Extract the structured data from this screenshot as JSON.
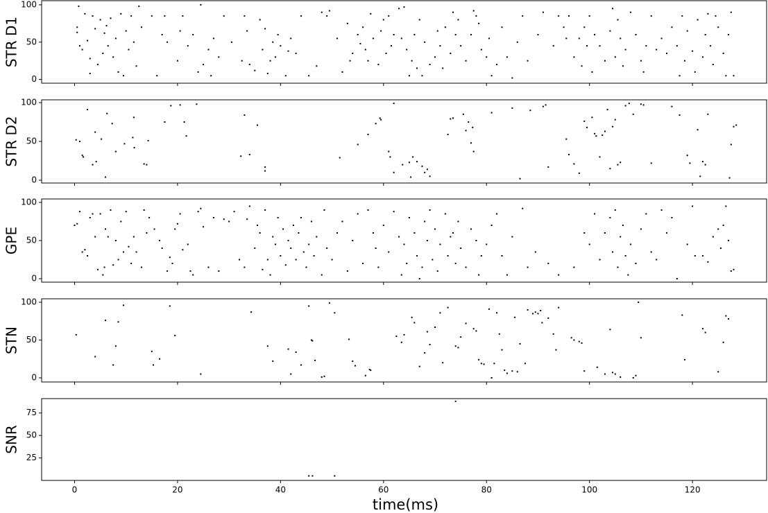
{
  "chart_data": [
    {
      "type": "scatter",
      "ylabel": "STR D1",
      "color": "#000000",
      "xlim": [
        -6.4,
        134.4
      ],
      "xticks": [
        0,
        20,
        40,
        60,
        80,
        100,
        120
      ],
      "ylim": [
        -5,
        105.5
      ],
      "yticks": [
        0,
        50,
        100
      ],
      "x": [
        0.5,
        0.5,
        0.8,
        1,
        1.5,
        2,
        2.5,
        3,
        3,
        3.5,
        4,
        4.5,
        5,
        5.5,
        5.8,
        6.2,
        6.5,
        7,
        7.5,
        8,
        8.5,
        9,
        9.5,
        10,
        10.5,
        11,
        11.5,
        12,
        12.5,
        13,
        15,
        16,
        17,
        17.5,
        18,
        20,
        20.5,
        21,
        22,
        23,
        24,
        24.5,
        25,
        26,
        26.5,
        27,
        28,
        29,
        30.5,
        32.5,
        33,
        33.5,
        34,
        35,
        36,
        36.5,
        37,
        37.5,
        38,
        38.5,
        39,
        39.5,
        40,
        41,
        41.5,
        42,
        43,
        44,
        45.5,
        47,
        48,
        49,
        49.5,
        51,
        52,
        53,
        53.5,
        54,
        55,
        55.5,
        56,
        56.5,
        57,
        57.5,
        58,
        59,
        59.5,
        60,
        60.5,
        61,
        61.5,
        62,
        63,
        63.5,
        64,
        64.5,
        65,
        65.5,
        66,
        66.5,
        67,
        67.5,
        68,
        69,
        70,
        70.5,
        71,
        71.5,
        72,
        73,
        73.5,
        74,
        74.5,
        75,
        76,
        77,
        77.5,
        78,
        78.5,
        79,
        80,
        80.5,
        81,
        82,
        83,
        84,
        85,
        86,
        87,
        88,
        90,
        91,
        93,
        94,
        95,
        95.5,
        96,
        97,
        98,
        98.5,
        99,
        99.5,
        100,
        100.5,
        101,
        102,
        103,
        104,
        104.5,
        105,
        105.5,
        106,
        106.5,
        107,
        108,
        109,
        110,
        110.5,
        111,
        112,
        113,
        114,
        115,
        116,
        117,
        117.5,
        118,
        118.5,
        119,
        120,
        120.5,
        121,
        122,
        122.5,
        123,
        123.5,
        124,
        124.5,
        125,
        126,
        126.5,
        127,
        127.5,
        128
      ],
      "values": [
        70,
        63,
        98,
        45,
        40,
        88,
        52,
        8,
        28,
        85,
        68,
        20,
        80,
        35,
        62,
        72,
        45,
        82,
        30,
        55,
        10,
        88,
        5,
        65,
        40,
        85,
        50,
        18,
        98,
        70,
        85,
        5,
        60,
        85,
        50,
        25,
        65,
        85,
        45,
        60,
        10,
        100,
        20,
        40,
        5,
        55,
        30,
        85,
        50,
        25,
        85,
        65,
        20,
        12,
        80,
        40,
        68,
        8,
        25,
        50,
        30,
        60,
        45,
        5,
        38,
        55,
        35,
        85,
        5,
        18,
        90,
        85,
        92,
        55,
        10,
        75,
        25,
        35,
        60,
        48,
        70,
        40,
        25,
        88,
        55,
        20,
        65,
        80,
        35,
        85,
        45,
        60,
        95,
        55,
        97,
        40,
        5,
        25,
        60,
        15,
        80,
        5,
        50,
        20,
        30,
        65,
        45,
        15,
        70,
        35,
        90,
        60,
        80,
        45,
        25,
        60,
        92,
        85,
        75,
        40,
        30,
        55,
        5,
        20,
        70,
        30,
        2,
        50,
        85,
        25,
        60,
        90,
        45,
        85,
        70,
        55,
        85,
        30,
        55,
        18,
        70,
        45,
        85,
        10,
        60,
        45,
        25,
        65,
        95,
        30,
        80,
        55,
        18,
        40,
        90,
        60,
        25,
        10,
        45,
        85,
        40,
        55,
        35,
        70,
        45,
        5,
        85,
        25,
        65,
        38,
        10,
        80,
        30,
        60,
        88,
        45,
        20,
        85,
        70,
        35,
        5,
        60,
        90,
        5
      ]
    },
    {
      "type": "scatter",
      "ylabel": "STR D2",
      "color": "#000000",
      "xlim": [
        -6.4,
        134.4
      ],
      "xticks": [
        0,
        20,
        40,
        60,
        80,
        100,
        120
      ],
      "ylim": [
        -3.6,
        103.6
      ],
      "yticks": [
        0,
        50,
        100
      ],
      "x": [
        0.3,
        1,
        1.5,
        1.7,
        2.5,
        3.5,
        4,
        4.2,
        5.2,
        6,
        6.3,
        7.3,
        8,
        9.7,
        11.3,
        11.5,
        11.6,
        13.5,
        14,
        14.3,
        17.5,
        18.7,
        20.5,
        21.3,
        21.7,
        23.7,
        32.3,
        33,
        34,
        35.5,
        37,
        37,
        51.5,
        55,
        57,
        58.5,
        59.3,
        59.5,
        61,
        61.3,
        62,
        62,
        63.7,
        65,
        65.3,
        65.7,
        66.5,
        67.5,
        68,
        68.5,
        69,
        72.5,
        73,
        73.5,
        75.5,
        76,
        76.5,
        77,
        77.5,
        77.3,
        81,
        85,
        86.5,
        88.5,
        91,
        91.5,
        92,
        95.5,
        96,
        97,
        98,
        99,
        99.5,
        100.5,
        101,
        101.3,
        102,
        102.5,
        103,
        103.5,
        104,
        104.5,
        105,
        105.5,
        106,
        107,
        107.7,
        108.5,
        110.5,
        110,
        112,
        116,
        117.5,
        119,
        119.5,
        121,
        121.5,
        122,
        122.5,
        123,
        127.2,
        127.5,
        128,
        128.5
      ],
      "values": [
        52,
        50,
        32,
        30,
        91,
        20,
        62,
        24,
        53,
        4,
        86,
        73,
        37,
        47,
        55,
        81,
        42,
        21,
        20,
        51,
        75,
        96,
        97,
        75,
        57,
        98,
        31,
        84,
        33,
        71,
        17,
        12,
        29,
        46,
        59,
        73,
        80,
        78,
        37,
        30,
        10,
        99,
        20,
        23,
        4,
        30,
        24,
        18,
        10,
        14,
        5,
        59,
        79,
        80,
        85,
        64,
        75,
        48,
        37,
        68,
        87,
        93,
        2,
        90,
        95,
        97,
        17,
        53,
        33,
        21,
        9,
        76,
        68,
        81,
        60,
        57,
        30,
        58,
        63,
        91,
        15,
        69,
        78,
        20,
        23,
        96,
        99,
        85,
        97,
        98,
        22,
        95,
        84,
        32,
        22,
        65,
        5,
        24,
        20,
        85,
        3,
        46,
        69,
        71
      ]
    },
    {
      "type": "scatter",
      "ylabel": "GPE",
      "color": "#000000",
      "xlim": [
        -6.4,
        134.4
      ],
      "xticks": [
        0,
        20,
        40,
        60,
        80,
        100,
        120
      ],
      "ylim": [
        -4.5,
        104.5
      ],
      "yticks": [
        0,
        50,
        100
      ],
      "x": [
        0,
        0.5,
        1,
        1.5,
        2,
        2.5,
        3,
        3.5,
        4,
        4.5,
        5,
        5.5,
        5.8,
        6,
        6.5,
        7,
        7.5,
        8,
        8.5,
        9,
        9.5,
        10,
        10.5,
        11,
        11.5,
        12,
        13,
        13.5,
        14,
        14.5,
        15.5,
        16.5,
        17,
        18,
        18.5,
        19,
        19.5,
        20,
        20.5,
        21,
        22,
        22.5,
        23,
        24,
        24.5,
        25,
        26,
        27,
        28,
        29,
        30,
        31,
        32,
        33,
        33.5,
        34,
        35,
        35.5,
        36,
        36.5,
        37,
        37.5,
        38,
        38.5,
        39,
        39.5,
        40,
        40.5,
        41,
        41.5,
        42,
        42.5,
        43,
        43.5,
        44,
        44.5,
        45,
        45.5,
        46,
        46.5,
        47,
        48,
        48.5,
        49,
        50,
        51,
        52,
        53,
        54,
        55,
        56,
        57,
        58,
        58.5,
        59,
        60,
        61,
        62,
        63,
        63.5,
        64,
        64.5,
        65,
        66,
        66.5,
        67,
        67.5,
        68,
        68.5,
        69,
        69.5,
        70,
        70.5,
        71,
        72,
        72.5,
        73,
        73.5,
        74,
        74.5,
        75,
        76,
        77,
        78,
        78.5,
        79,
        80,
        81,
        82,
        83,
        84,
        85,
        87,
        88,
        89.5,
        92,
        94,
        97,
        99,
        100,
        101,
        102,
        103,
        104,
        104.5,
        105,
        105.5,
        106,
        106.5,
        107,
        107.5,
        108,
        109,
        110,
        111,
        112,
        113,
        114,
        115,
        116,
        117,
        119,
        120,
        120.5,
        122,
        123,
        124,
        125,
        125.5,
        126,
        126.5,
        127,
        127.5,
        128
      ],
      "values": [
        70,
        72,
        88,
        35,
        38,
        30,
        80,
        85,
        55,
        12,
        85,
        5,
        15,
        65,
        55,
        90,
        18,
        50,
        25,
        75,
        35,
        88,
        42,
        20,
        55,
        35,
        15,
        90,
        60,
        80,
        65,
        50,
        40,
        10,
        28,
        20,
        65,
        72,
        85,
        38,
        45,
        10,
        5,
        88,
        92,
        68,
        15,
        80,
        10,
        78,
        75,
        88,
        25,
        15,
        78,
        95,
        40,
        70,
        60,
        12,
        90,
        25,
        5,
        55,
        45,
        80,
        30,
        65,
        18,
        50,
        40,
        70,
        25,
        60,
        80,
        35,
        15,
        45,
        75,
        30,
        55,
        5,
        90,
        40,
        25,
        60,
        75,
        10,
        50,
        85,
        20,
        90,
        60,
        40,
        15,
        70,
        35,
        88,
        55,
        5,
        45,
        20,
        80,
        60,
        30,
        0,
        15,
        75,
        50,
        90,
        25,
        65,
        10,
        45,
        85,
        30,
        55,
        60,
        20,
        75,
        40,
        15,
        65,
        50,
        5,
        30,
        45,
        70,
        85,
        30,
        5,
        55,
        92,
        15,
        35,
        20,
        5,
        15,
        60,
        45,
        85,
        25,
        60,
        80,
        35,
        90,
        15,
        55,
        70,
        30,
        5,
        45,
        20,
        65,
        85,
        35,
        25,
        90,
        60,
        80,
        0,
        45,
        95,
        30,
        30,
        22,
        55,
        65,
        40,
        70,
        95,
        50,
        10,
        12
      ]
    },
    {
      "type": "scatter",
      "ylabel": "STN",
      "color": "#000000",
      "xlim": [
        -6.4,
        134.4
      ],
      "xticks": [
        0,
        20,
        40,
        60,
        80,
        100,
        120
      ],
      "ylim": [
        -5.5,
        104.6
      ],
      "yticks": [
        0,
        50,
        100
      ],
      "x": [
        0.3,
        4,
        6,
        7.5,
        8,
        8.5,
        9.5,
        15,
        15.3,
        16.5,
        18.5,
        19.5,
        24.5,
        34.3,
        37.5,
        38.5,
        41.5,
        42,
        43,
        44,
        45.5,
        46,
        46.2,
        46.7,
        48,
        48.5,
        49.5,
        50.5,
        53.3,
        54,
        54.5,
        56.5,
        57.3,
        57.5,
        62.5,
        63.5,
        64,
        65.5,
        66,
        67,
        68,
        68.5,
        69,
        70,
        71,
        71.5,
        72.5,
        74,
        74.5,
        75,
        76,
        77.5,
        78,
        78.5,
        79,
        79.5,
        80.5,
        81,
        81.5,
        82,
        82.5,
        83,
        83.5,
        84,
        85,
        85.5,
        86,
        86.5,
        87.5,
        88,
        89,
        89.5,
        90,
        90.5,
        90.8,
        92,
        93,
        93.5,
        94,
        96.5,
        97,
        98,
        98.5,
        99,
        101.5,
        103,
        104,
        104.5,
        105,
        106,
        108.5,
        109,
        109.5,
        110,
        118,
        118.5,
        122,
        122.5,
        125,
        126,
        126.5,
        127
      ],
      "values": [
        57,
        28,
        76,
        17,
        42,
        74,
        96,
        35,
        17,
        25,
        95,
        56,
        5,
        87,
        42,
        22,
        38,
        5,
        34,
        17,
        95,
        50,
        49,
        23,
        1,
        2,
        99,
        86,
        51,
        22,
        16,
        3,
        11,
        10,
        55,
        47,
        57,
        80,
        73,
        15,
        33,
        61,
        44,
        67,
        86,
        20,
        93,
        42,
        40,
        54,
        72,
        65,
        62,
        24,
        19,
        18,
        91,
        0,
        19,
        86,
        58,
        37,
        10,
        6,
        9,
        80,
        8,
        45,
        19,
        90,
        85,
        87,
        85,
        89,
        73,
        79,
        58,
        37,
        93,
        53,
        50,
        48,
        46,
        9,
        14,
        5,
        64,
        7,
        5,
        1,
        0,
        3,
        100,
        53,
        83,
        24,
        65,
        60,
        8,
        47,
        82,
        78
      ]
    },
    {
      "type": "scatter",
      "ylabel": "SNR",
      "xlabel": "time(ms)",
      "color": "#000000",
      "xlim": [
        -6.4,
        134.4
      ],
      "xticks": [
        0,
        20,
        40,
        60,
        80,
        100,
        120
      ],
      "ylim": [
        0,
        91
      ],
      "yticks": [
        25,
        50,
        75
      ],
      "x": [
        45.5,
        46.2,
        50.5,
        74
      ],
      "values": [
        5,
        5,
        5,
        88
      ]
    }
  ]
}
